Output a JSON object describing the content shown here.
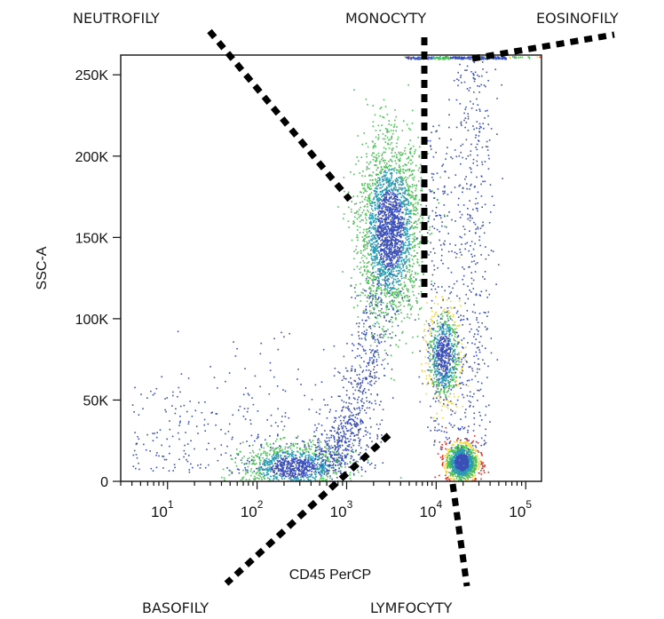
{
  "chart_data": {
    "type": "scatter",
    "title": "",
    "xlabel": "CD45 PerCP",
    "ylabel": "SSC-A",
    "xscale": "log",
    "xlim": [
      3,
      150000
    ],
    "ylim": [
      0,
      262144
    ],
    "x_ticks": [
      {
        "base": "10",
        "exp": "1",
        "value": 10
      },
      {
        "base": "10",
        "exp": "2",
        "value": 100
      },
      {
        "base": "10",
        "exp": "3",
        "value": 1000
      },
      {
        "base": "10",
        "exp": "4",
        "value": 10000
      },
      {
        "base": "10",
        "exp": "5",
        "value": 100000
      }
    ],
    "y_ticks": [
      {
        "label": "0",
        "value": 0
      },
      {
        "label": "50K",
        "value": 50000
      },
      {
        "label": "100K",
        "value": 100000
      },
      {
        "label": "150K",
        "value": 150000
      },
      {
        "label": "200K",
        "value": 200000
      },
      {
        "label": "250K",
        "value": 250000
      }
    ],
    "grid": false,
    "populations": [
      {
        "name": "NEUTROFILY",
        "center_x": 3000,
        "center_y": 155000,
        "spread_logx": 0.17,
        "spread_y": 27000,
        "count": 2600
      },
      {
        "name": "MONOCYTY",
        "center_x": 12000,
        "center_y": 78000,
        "spread_logx": 0.09,
        "spread_y": 14000,
        "count": 750
      },
      {
        "name": "LYMFOCYTY",
        "center_x": 19000,
        "center_y": 12000,
        "spread_logx": 0.09,
        "spread_y": 6000,
        "count": 1300
      },
      {
        "name": "BASOFILY",
        "center_x": 250,
        "center_y": 9000,
        "spread_logx": 0.28,
        "spread_y": 7000,
        "count": 1100
      },
      {
        "name": "EOSINOFILY",
        "center_x": 25000,
        "center_y": 262000,
        "spread_logx": 0.35,
        "spread_y": 0,
        "count": 160
      }
    ],
    "annotations": [
      {
        "text": "NEUTROFILY"
      },
      {
        "text": "MONOCYTY"
      },
      {
        "text": "EOSINOFILY"
      },
      {
        "text": "BASOFILY"
      },
      {
        "text": "LYMFOCYTY"
      }
    ],
    "colors": {
      "sparse": "#3b4fb8",
      "low": "#2a9bb0",
      "mid": "#4cbf56",
      "high": "#f0d43a",
      "peak": "#e8281c"
    }
  }
}
